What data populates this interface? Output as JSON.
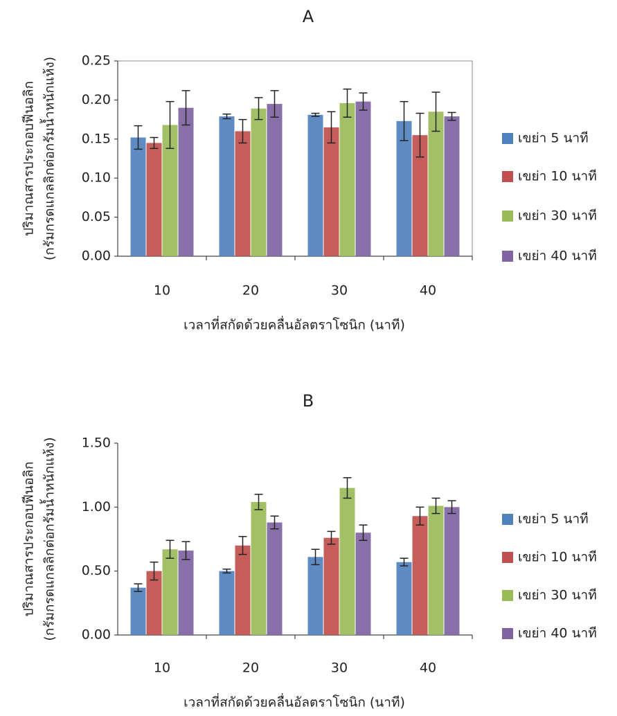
{
  "chart_data": [
    {
      "type": "bar",
      "title": "A",
      "y_label": [
        "ปริมาณสารประกอบฟีนอลิก",
        "(กรัมกรดแกลลิกต่อกรัมน้ำหนักแห้ง)"
      ],
      "x_label": "เวลาที่สกัดด้วยคลื่นอัลตราโซนิก (นาที)",
      "categories": [
        "10",
        "20",
        "30",
        "40"
      ],
      "ylim": [
        0,
        0.25
      ],
      "yticks": [
        {
          "value": 0,
          "label": "0.00"
        },
        0.05,
        {
          "value": 0.1,
          "label": "0.10"
        },
        0.15,
        {
          "value": 0.2,
          "label": "0.20"
        },
        0.25
      ],
      "legend": "right",
      "series": [
        {
          "name": "เขย่า 5 นาที",
          "color": "#4f81bd",
          "values": [
            0.152,
            0.179,
            0.181,
            0.173
          ],
          "errors": [
            0.015,
            0.003,
            0.002,
            0.025
          ]
        },
        {
          "name": "เขย่า 10 นาที",
          "color": "#c0504d",
          "values": [
            0.145,
            0.16,
            0.165,
            0.155
          ],
          "errors": [
            0.007,
            0.015,
            0.02,
            0.028
          ]
        },
        {
          "name": "เขย่า 30 นาที",
          "color": "#9bbb59",
          "values": [
            0.168,
            0.189,
            0.196,
            0.185
          ],
          "errors": [
            0.03,
            0.014,
            0.018,
            0.025
          ]
        },
        {
          "name": "เขย่า 40 นาที",
          "color": "#8064a2",
          "values": [
            0.19,
            0.195,
            0.198,
            0.179
          ],
          "errors": [
            0.022,
            0.017,
            0.011,
            0.005
          ]
        }
      ]
    },
    {
      "type": "bar",
      "title": "B",
      "y_label": [
        "ปริมาณสารประกอบฟีนอลิก",
        "(กรัมกรดแกลลิกต่อกรัมน้ำหนักแห้ง)"
      ],
      "x_label": "เวลาที่สกัดด้วยคลื่นอัลตราโซนิก (นาที)",
      "categories": [
        "10",
        "20",
        "30",
        "40"
      ],
      "ylim": [
        0,
        1.5
      ],
      "yticks": [
        {
          "value": 0,
          "label": "0.00"
        },
        {
          "value": 0.5,
          "label": "0.50"
        },
        {
          "value": 1,
          "label": "1.00"
        },
        {
          "value": 1.5,
          "label": "1.50"
        }
      ],
      "legend": "right",
      "series": [
        {
          "name": "เขย่า 5 นาที",
          "color": "#4f81bd",
          "values": [
            0.37,
            0.5,
            0.61,
            0.57
          ],
          "errors": [
            0.03,
            0.015,
            0.06,
            0.03
          ]
        },
        {
          "name": "เขย่า 10 นาที",
          "color": "#c0504d",
          "values": [
            0.5,
            0.7,
            0.76,
            0.93
          ],
          "errors": [
            0.07,
            0.07,
            0.05,
            0.07
          ]
        },
        {
          "name": "เขย่า 30 นาที",
          "color": "#9bbb59",
          "values": [
            0.67,
            1.04,
            1.15,
            1.01
          ],
          "errors": [
            0.07,
            0.06,
            0.08,
            0.06
          ]
        },
        {
          "name": "เขย่า 40 นาที",
          "color": "#8064a2",
          "values": [
            0.66,
            0.88,
            0.8,
            1.0
          ],
          "errors": [
            0.07,
            0.05,
            0.06,
            0.05
          ]
        }
      ]
    }
  ]
}
